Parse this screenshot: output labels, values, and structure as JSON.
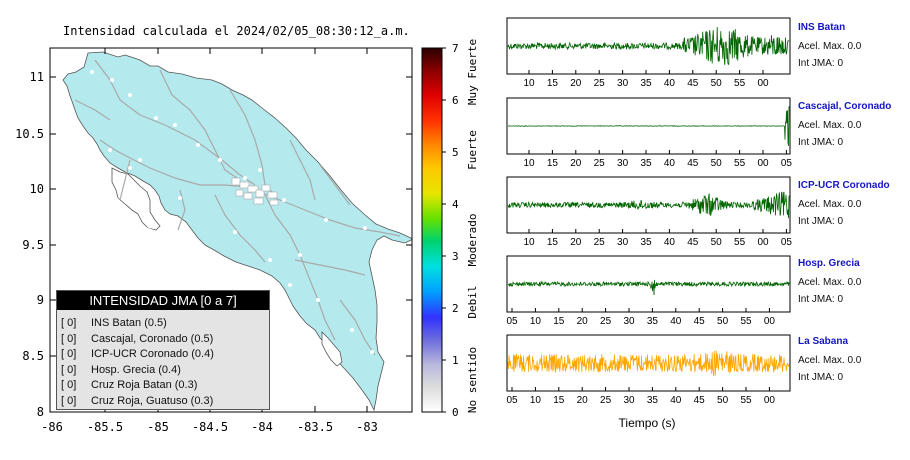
{
  "map": {
    "title": "Intensidad calculada el 2024/02/05_08:30:12_a.m.",
    "x_ticks": [
      "-86",
      "-85.5",
      "-85",
      "-84.5",
      "-84",
      "-83.5",
      "-83"
    ],
    "y_ticks": [
      "11",
      "10.5",
      "10",
      "9.5",
      "9",
      "8.5",
      "8"
    ],
    "colors": {
      "land": "#b4eaee",
      "roads": "#a9a9a9",
      "frame": "#000000"
    }
  },
  "colorbar": {
    "ticks": [
      "0",
      "1",
      "2",
      "3",
      "4",
      "5",
      "6",
      "7"
    ],
    "labels": [
      "No sentido",
      "Debil",
      "Moderado",
      "Fuerte",
      "Muy Fuerte"
    ]
  },
  "legend": {
    "title": "INTENSIDAD JMA [0 a 7]",
    "items": [
      {
        "int": "[ 0]",
        "label": "INS Batan (0.5)"
      },
      {
        "int": "[ 0]",
        "label": "Cascajal, Coronado (0.5)"
      },
      {
        "int": "[ 0]",
        "label": "ICP-UCR Coronado (0.4)"
      },
      {
        "int": "[ 0]",
        "label": "Hosp. Grecia (0.4)"
      },
      {
        "int": "[ 0]",
        "label": "Cruz Roja Batan (0.3)"
      },
      {
        "int": "[ 0]",
        "label": "Cruz Roja, Guatuso (0.3)"
      }
    ]
  },
  "stations": [
    {
      "name": "INS Batan",
      "acel": "Acel. Max. 0.0",
      "jma": "Int JMA: 0",
      "color": "#006400",
      "ticks": [
        "10",
        "15",
        "20",
        "25",
        "30",
        "35",
        "40",
        "45",
        "50",
        "55",
        "00"
      ]
    },
    {
      "name": "Cascajal, Coronado",
      "acel": "Acel. Max. 0.0",
      "jma": "Int JMA: 0",
      "color": "#006400",
      "ticks": [
        "10",
        "15",
        "20",
        "25",
        "30",
        "35",
        "40",
        "45",
        "50",
        "55",
        "00",
        "05"
      ]
    },
    {
      "name": "ICP-UCR Coronado",
      "acel": "Acel. Max. 0.0",
      "jma": "Int JMA: 0",
      "color": "#006400",
      "ticks": [
        "10",
        "15",
        "20",
        "25",
        "30",
        "35",
        "40",
        "45",
        "50",
        "55",
        "00",
        "05"
      ]
    },
    {
      "name": "Hosp. Grecia",
      "acel": "Acel. Max. 0.0",
      "jma": "Int JMA: 0",
      "color": "#006400",
      "ticks": [
        "05",
        "10",
        "15",
        "20",
        "25",
        "30",
        "35",
        "40",
        "45",
        "50",
        "55",
        "00"
      ]
    },
    {
      "name": "La Sabana",
      "acel": "Acel. Max. 0.0",
      "jma": "Int JMA: 0",
      "color": "#ffa500",
      "ticks": [
        "05",
        "10",
        "15",
        "20",
        "25",
        "30",
        "35",
        "40",
        "45",
        "50",
        "55",
        "00"
      ]
    }
  ],
  "wave_xlabel": "Tiempo (s)",
  "chart_data": [
    {
      "type": "heatmap",
      "title": "Intensidad calculada el 2024/02/05_08:30:12_a.m.",
      "xlim": [
        -86,
        -82.5
      ],
      "ylim": [
        8,
        11.3
      ],
      "colorbar_range": [
        0,
        7
      ],
      "colorbar_labels": [
        "No sentido",
        "Debil",
        "Moderado",
        "Fuerte",
        "Muy Fuerte"
      ]
    },
    {
      "type": "line",
      "xlabel": "Tiempo (s)",
      "series": [
        {
          "name": "INS Batan"
        },
        {
          "name": "Cascajal, Coronado"
        },
        {
          "name": "ICP-UCR Coronado"
        },
        {
          "name": "Hosp. Grecia"
        },
        {
          "name": "La Sabana"
        }
      ]
    }
  ]
}
